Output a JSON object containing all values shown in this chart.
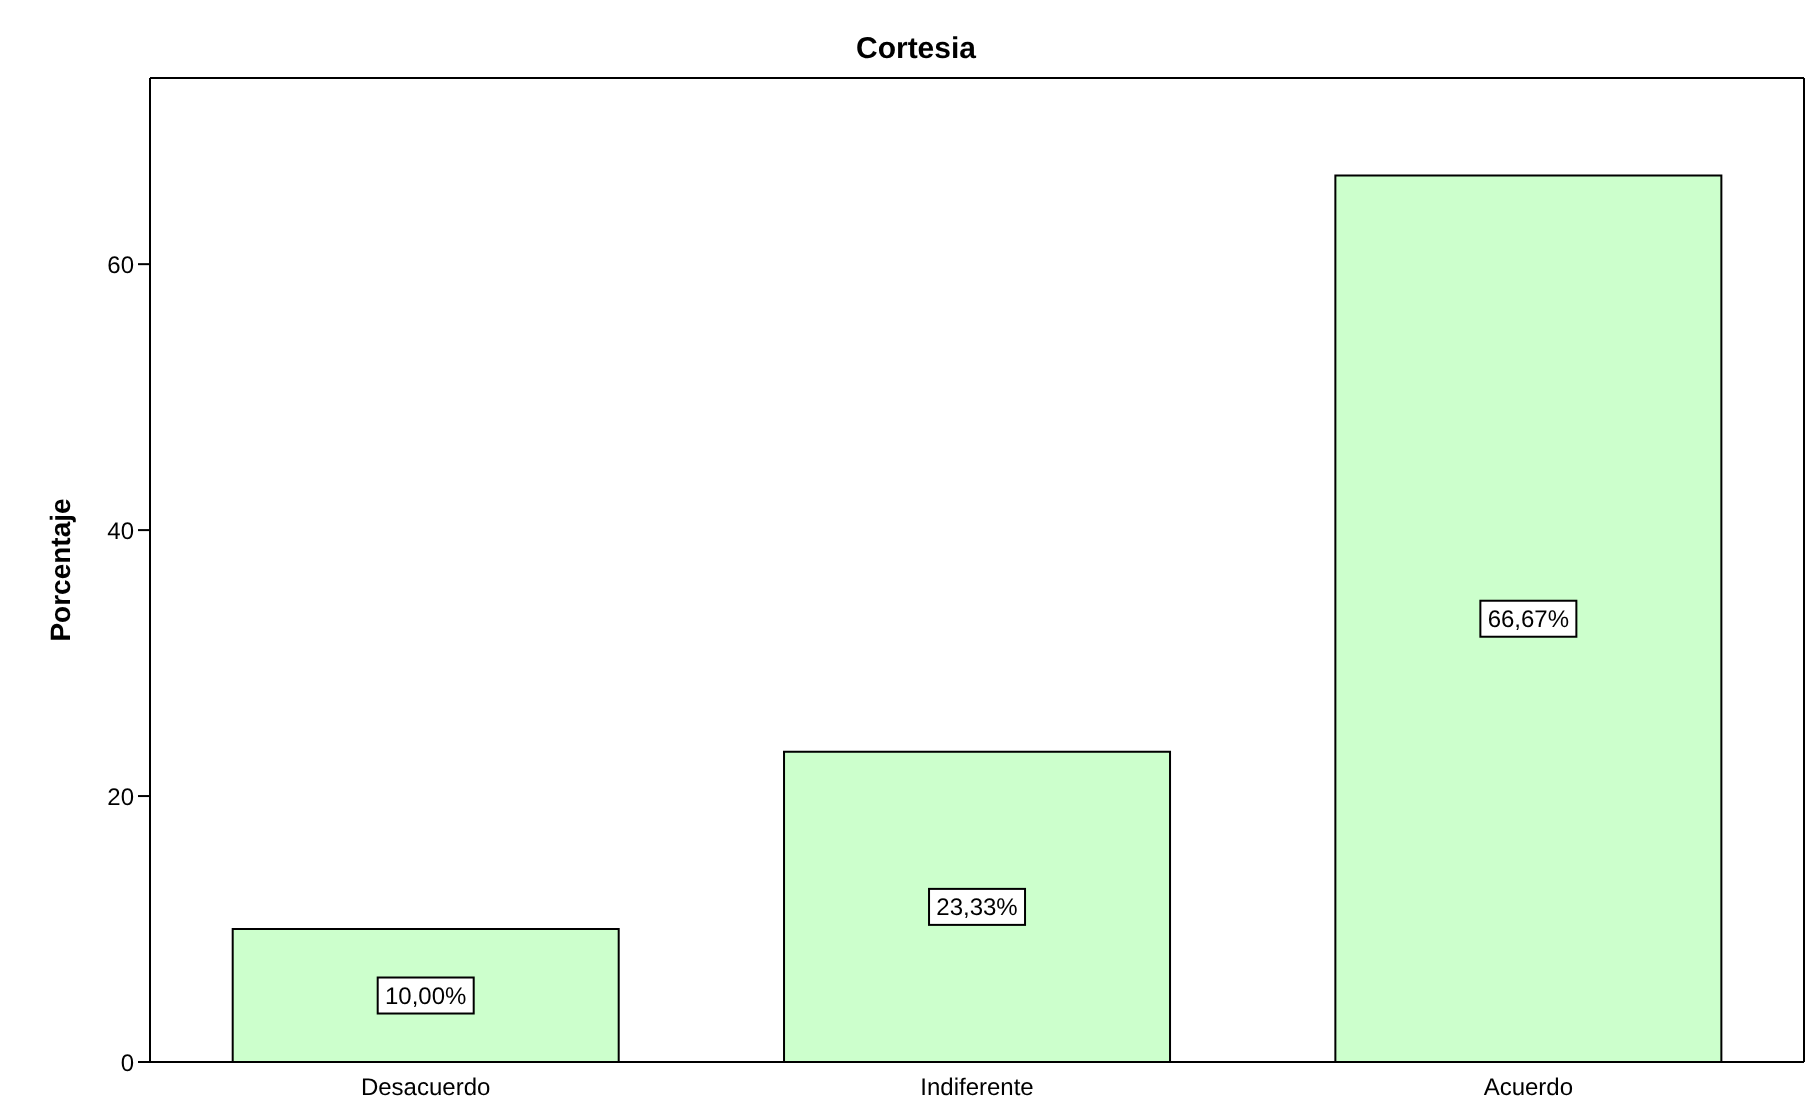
{
  "chart_data": {
    "type": "bar",
    "title": "Cortesia",
    "ylabel": "Porcentaje",
    "categories": [
      "Desacuerdo",
      "Indiferente",
      "Acuerdo"
    ],
    "values": [
      10.0,
      23.33,
      66.67
    ],
    "value_labels": [
      "10,00%",
      "23,33%",
      "66,67%"
    ],
    "color": "#ccffcc",
    "ylim": [
      0,
      74
    ],
    "yticks": [
      0,
      20,
      40,
      60
    ],
    "grid": false
  }
}
